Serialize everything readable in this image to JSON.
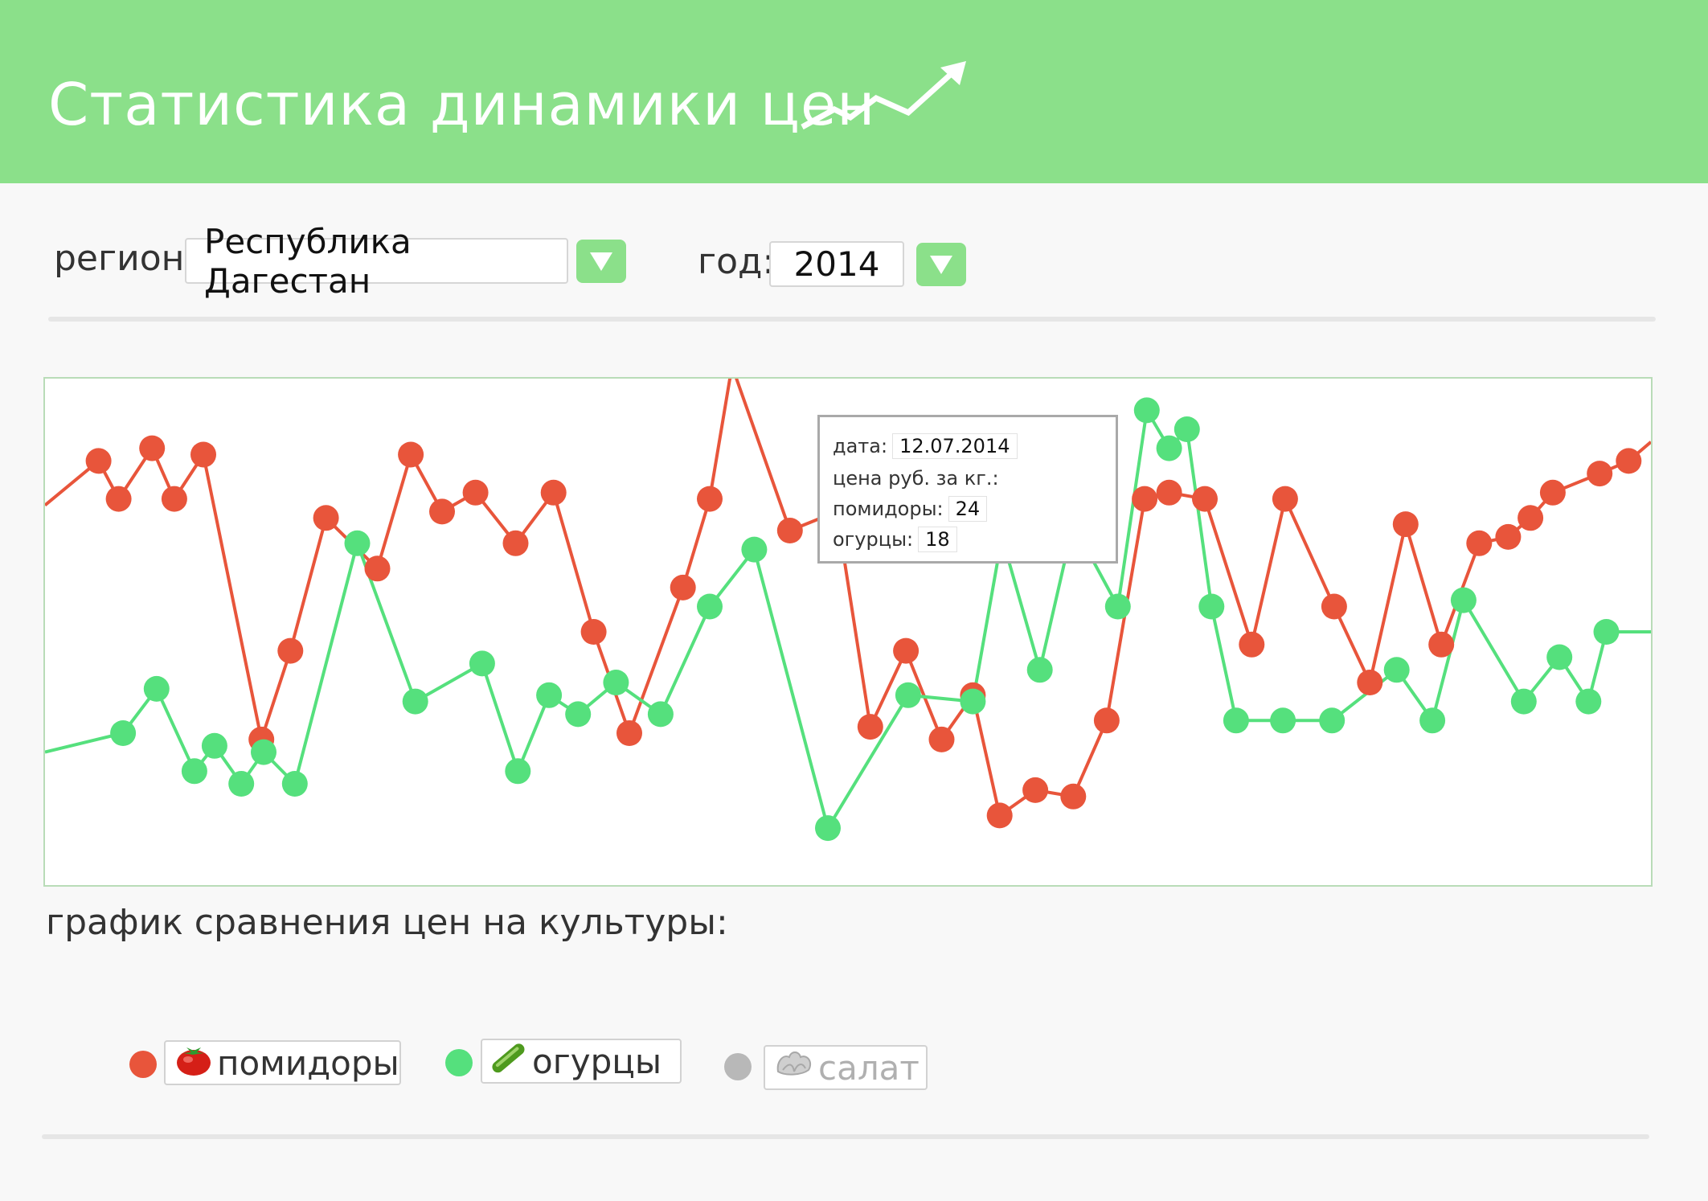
{
  "header": {
    "title": "Статистика динамики цен",
    "accent_color": "#8be08a",
    "icon": "trend-up-arrow-icon"
  },
  "filters": {
    "region_label": "регион:",
    "region_value": "Республика Дагестан",
    "year_label": "год:",
    "year_value": "2014"
  },
  "tooltip": {
    "date_label": "дата:",
    "date_value": "12.07.2014",
    "price_label": "цена руб. за кг.:",
    "tomatoes_label": "помидоры:",
    "tomatoes_value": "24",
    "cucumbers_label": "огурцы:",
    "cucumbers_value": "18"
  },
  "caption": "график сравнения цен на культуры:",
  "legend": [
    {
      "label": "помидоры",
      "color": "#e8553b",
      "icon": "tomato-icon",
      "active": true
    },
    {
      "label": "огурцы",
      "color": "#55e07d",
      "icon": "cucumber-icon",
      "active": true
    },
    {
      "label": "салат",
      "color": "#b8b8b8",
      "icon": "lettuce-icon",
      "active": false
    }
  ],
  "chart_data": {
    "type": "line",
    "title": "",
    "xlabel": "",
    "ylabel": "",
    "ylim": [
      0,
      40
    ],
    "grid": false,
    "series": [
      {
        "name": "помидоры",
        "color": "#e8553b",
        "x": [
          0,
          2.4,
          3.3,
          4.8,
          5.8,
          7.1,
          9.7,
          11.0,
          12.6,
          14.9,
          16.4,
          17.8,
          19.3,
          21.1,
          22.8,
          24.6,
          26.2,
          28.6,
          29.8,
          30.8,
          33.4,
          35.5,
          37.0,
          38.6,
          40.2,
          41.6,
          42.8,
          44.4,
          46.1,
          47.6,
          49.3,
          50.4,
          52.0,
          54.1,
          55.6,
          57.8,
          59.4,
          61.0,
          62.6,
          64.3,
          65.6,
          66.6,
          67.6,
          69.7,
          71.0,
          72.0
        ],
        "values": [
          30.0,
          33.5,
          30.5,
          34.5,
          30.5,
          34.0,
          11.5,
          18.5,
          29.0,
          25.0,
          34.0,
          29.5,
          31.0,
          27.0,
          31.0,
          20.0,
          12.0,
          23.5,
          30.5,
          41.0,
          28.0,
          29.5,
          12.5,
          18.5,
          11.5,
          15.0,
          5.5,
          7.5,
          7.0,
          13.0,
          30.5,
          31.0,
          30.5,
          19.0,
          30.5,
          22.0,
          16.0,
          28.5,
          19.0,
          27.0,
          27.5,
          29.0,
          31.0,
          32.5,
          33.5,
          35.0
        ]
      },
      {
        "name": "огурцы",
        "color": "#55e07d",
        "x": [
          0,
          3.5,
          5.0,
          6.7,
          7.6,
          8.8,
          9.8,
          11.2,
          14.0,
          16.6,
          19.6,
          21.2,
          22.6,
          23.9,
          25.6,
          27.6,
          29.8,
          31.8,
          35.1,
          38.7,
          41.6,
          42.9,
          44.6,
          46.1,
          48.1,
          49.4,
          50.4,
          51.2,
          52.3,
          53.4,
          55.5,
          57.7,
          60.6,
          62.2,
          63.6,
          66.3,
          67.9,
          69.2,
          70.0,
          72.0
        ],
        "values": [
          10.5,
          12.0,
          15.5,
          9.0,
          11.0,
          8.0,
          10.5,
          8.0,
          27.0,
          14.5,
          17.5,
          9.0,
          15.0,
          13.5,
          16.0,
          13.5,
          22.0,
          26.5,
          4.5,
          15.0,
          14.5,
          27.5,
          17.0,
          28.5,
          22.0,
          37.5,
          34.5,
          36.0,
          22.0,
          13.0,
          13.0,
          13.0,
          17.0,
          13.0,
          22.5,
          14.5,
          18.0,
          14.5,
          20.0,
          20.0
        ]
      }
    ]
  }
}
